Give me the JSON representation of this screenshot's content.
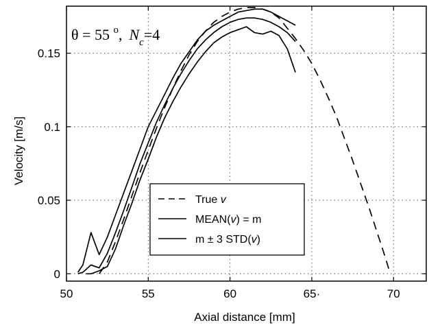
{
  "chart_data": {
    "type": "line",
    "xlabel": "Axial distance [mm]",
    "ylabel": "Velocity [m/s]",
    "xlim": [
      50,
      72
    ],
    "ylim": [
      -0.005,
      0.182
    ],
    "x_ticks": [
      50,
      55,
      60,
      65,
      70
    ],
    "x_tick_labels": [
      "50",
      "55",
      "60",
      "65·",
      "70"
    ],
    "y_ticks": [
      0,
      0.05,
      0.1,
      0.15
    ],
    "y_tick_labels": [
      "0",
      "0.05",
      "0.1",
      "0.15"
    ],
    "grid": true,
    "legend_position": "lower-center",
    "annotation": {
      "theta_symbol": "θ",
      "equals_a": " = 55 ",
      "degree": "o",
      "comma": ",",
      "n_symbol": "N",
      "n_subscript": "c",
      "equals_b": "=4"
    },
    "legend": [
      {
        "style": "dashed",
        "label_prefix": "True ",
        "label_var": "v",
        "label_suffix": ""
      },
      {
        "style": "solid",
        "label_prefix": "MEAN(",
        "label_var": "v",
        "label_suffix": ") = m"
      },
      {
        "style": "solid",
        "label_prefix": "m ± 3 STD(",
        "label_var": "v",
        "label_suffix": ")"
      }
    ],
    "series": [
      {
        "style": "dashed",
        "points": [
          [
            52.0,
            0
          ],
          [
            52.5,
            0.008
          ],
          [
            53,
            0.022
          ],
          [
            53.5,
            0.037
          ],
          [
            54,
            0.053
          ],
          [
            54.5,
            0.069
          ],
          [
            55,
            0.084
          ],
          [
            55.5,
            0.099
          ],
          [
            56,
            0.113
          ],
          [
            56.5,
            0.126
          ],
          [
            57,
            0.138
          ],
          [
            57.5,
            0.149
          ],
          [
            58,
            0.158
          ],
          [
            58.5,
            0.165
          ],
          [
            59,
            0.171
          ],
          [
            59.5,
            0.175
          ],
          [
            60,
            0.178
          ],
          [
            60.5,
            0.18
          ],
          [
            61,
            0.181
          ],
          [
            61.5,
            0.181
          ],
          [
            62,
            0.18
          ],
          [
            62.5,
            0.178
          ],
          [
            63,
            0.174
          ],
          [
            63.5,
            0.167
          ],
          [
            64,
            0.16
          ],
          [
            64.5,
            0.152
          ],
          [
            65,
            0.143
          ],
          [
            65.5,
            0.132
          ],
          [
            66,
            0.12
          ],
          [
            66.5,
            0.107
          ],
          [
            67,
            0.092
          ],
          [
            67.5,
            0.077
          ],
          [
            68,
            0.061
          ],
          [
            68.5,
            0.045
          ],
          [
            69,
            0.028
          ],
          [
            69.5,
            0.011
          ],
          [
            69.8,
            0.0
          ]
        ]
      },
      {
        "style": "solid",
        "points": [
          [
            50.7,
            0
          ],
          [
            51,
            0.001
          ],
          [
            51.5,
            0.006
          ],
          [
            52,
            0.004
          ],
          [
            52.5,
            0.014
          ],
          [
            53,
            0.028
          ],
          [
            53.5,
            0.043
          ],
          [
            54,
            0.059
          ],
          [
            54.5,
            0.075
          ],
          [
            55,
            0.089
          ],
          [
            55.5,
            0.103
          ],
          [
            56,
            0.115
          ],
          [
            56.5,
            0.126
          ],
          [
            57,
            0.136
          ],
          [
            57.5,
            0.145
          ],
          [
            58,
            0.153
          ],
          [
            58.5,
            0.159
          ],
          [
            59,
            0.164
          ],
          [
            59.5,
            0.168
          ],
          [
            60,
            0.171
          ],
          [
            60.5,
            0.173
          ],
          [
            61,
            0.174
          ],
          [
            61.5,
            0.174
          ],
          [
            62,
            0.173
          ],
          [
            62.5,
            0.171
          ],
          [
            63,
            0.168
          ],
          [
            63.5,
            0.164
          ],
          [
            64,
            0.158
          ]
        ]
      },
      {
        "style": "solid",
        "points": [
          [
            50.7,
            0.001
          ],
          [
            51,
            0.006
          ],
          [
            51.5,
            0.028
          ],
          [
            52,
            0.013
          ],
          [
            52.5,
            0.025
          ],
          [
            53,
            0.04
          ],
          [
            53.5,
            0.055
          ],
          [
            54,
            0.07
          ],
          [
            54.5,
            0.085
          ],
          [
            55,
            0.1
          ],
          [
            55.5,
            0.111
          ],
          [
            56,
            0.122
          ],
          [
            56.5,
            0.133
          ],
          [
            57,
            0.143
          ],
          [
            57.5,
            0.151
          ],
          [
            58,
            0.159
          ],
          [
            58.5,
            0.165
          ],
          [
            59,
            0.169
          ],
          [
            59.5,
            0.172
          ],
          [
            60,
            0.175
          ],
          [
            60.5,
            0.178
          ],
          [
            61,
            0.179
          ],
          [
            61.5,
            0.18
          ],
          [
            62,
            0.18
          ],
          [
            62.5,
            0.178
          ],
          [
            63,
            0.175
          ],
          [
            63.5,
            0.172
          ],
          [
            64,
            0.169
          ]
        ]
      },
      {
        "style": "solid",
        "points": [
          [
            51.2,
            0
          ],
          [
            51.5,
            0
          ],
          [
            52,
            0.002
          ],
          [
            52.5,
            0.005
          ],
          [
            53,
            0.017
          ],
          [
            53.5,
            0.033
          ],
          [
            54,
            0.048
          ],
          [
            54.5,
            0.064
          ],
          [
            55,
            0.078
          ],
          [
            55.5,
            0.093
          ],
          [
            56,
            0.106
          ],
          [
            56.5,
            0.117
          ],
          [
            57,
            0.127
          ],
          [
            57.5,
            0.136
          ],
          [
            58,
            0.144
          ],
          [
            58.5,
            0.151
          ],
          [
            59,
            0.157
          ],
          [
            59.5,
            0.161
          ],
          [
            60,
            0.164
          ],
          [
            60.5,
            0.166
          ],
          [
            61,
            0.168
          ],
          [
            61.5,
            0.164
          ],
          [
            62,
            0.163
          ],
          [
            62.5,
            0.165
          ],
          [
            63,
            0.162
          ],
          [
            63.5,
            0.153
          ],
          [
            64,
            0.137
          ]
        ]
      }
    ]
  }
}
